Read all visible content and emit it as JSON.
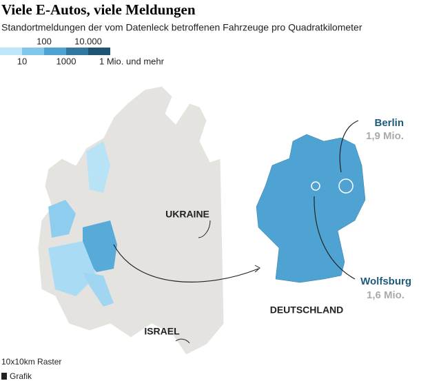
{
  "header": {
    "title": "Viele E-Autos, viele Meldungen",
    "subtitle": "Standortmeldungen der vom Datenleck betroffenen Fahrzeuge pro Quadratkilometer"
  },
  "legend": {
    "colors": [
      "#bde6f8",
      "#7fc8ec",
      "#4fa3d2",
      "#30789f",
      "#1d5573"
    ],
    "labels": [
      "10",
      "100",
      "1000",
      "10.000",
      "1 Mio. und mehr"
    ]
  },
  "map": {
    "labels": {
      "ukraine": "UKRAINE",
      "israel": "ISRAEL",
      "germany": "DEUTSCHLAND"
    },
    "callouts": [
      {
        "name": "Berlin",
        "value": "1,9 Mio."
      },
      {
        "name": "Wolfsburg",
        "value": "1,6 Mio."
      }
    ]
  },
  "footer": {
    "note": "10x10km Raster",
    "source": "Grafik"
  }
}
